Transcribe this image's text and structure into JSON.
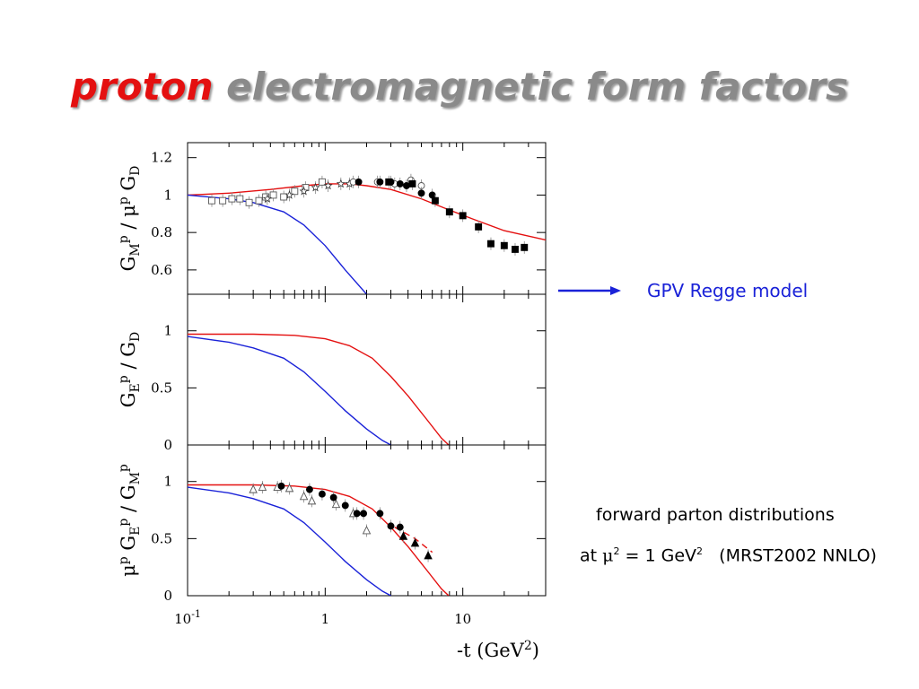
{
  "slide": {
    "title_word1": "proton",
    "title_word2": "electromagnetic form factors",
    "arrow_label": "GPV Regge model",
    "note_line1": "forward parton distributions",
    "note_line2_prefix": "at",
    "note_line2_mu": "μ",
    "note_line2_sup": "2",
    "note_line2_eq": "= 1 GeV",
    "note_line2_sup2": "2",
    "note_line2_ref": "(MRST2002 NNLO)"
  },
  "colors": {
    "title_accent": "#e41010",
    "title_gray": "#8a8a8a",
    "model_red": "#e41010",
    "model_blue": "#1a22d8",
    "arrow": "#1a22d8"
  },
  "chart_data": [
    {
      "type": "scatter",
      "panel": "top",
      "ylabel_parts": [
        "G",
        "M",
        "p",
        " / μ",
        "p",
        " G",
        "D"
      ],
      "xscale": "log",
      "xlim": [
        0.1,
        40
      ],
      "ylim": [
        0.47,
        1.28
      ],
      "yticks": [
        {
          "v": 0.6,
          "label": "0.6"
        },
        {
          "v": 0.8,
          "label": "0.8"
        },
        {
          "v": 1,
          "label": "1"
        },
        {
          "v": 1.2,
          "label": "1.2"
        }
      ],
      "series": [
        {
          "marker": "open-square",
          "points": [
            [
              0.15,
              0.97
            ],
            [
              0.18,
              0.97
            ],
            [
              0.21,
              0.98
            ],
            [
              0.24,
              0.98
            ],
            [
              0.28,
              0.96
            ],
            [
              0.33,
              0.97
            ],
            [
              0.37,
              0.99
            ],
            [
              0.42,
              1.0
            ],
            [
              0.5,
              0.99
            ],
            [
              0.6,
              1.02
            ],
            [
              0.72,
              1.04
            ],
            [
              0.95,
              1.07
            ]
          ]
        },
        {
          "marker": "open-star",
          "points": [
            [
              0.38,
              0.98
            ],
            [
              0.55,
              1.0
            ],
            [
              0.7,
              1.02
            ],
            [
              0.85,
              1.04
            ],
            [
              1.05,
              1.05
            ],
            [
              1.3,
              1.06
            ],
            [
              1.5,
              1.06
            ]
          ]
        },
        {
          "marker": "open-circle",
          "points": [
            [
              1.6,
              1.07
            ],
            [
              2.4,
              1.07
            ],
            [
              3.2,
              1.06
            ],
            [
              4.2,
              1.08
            ],
            [
              5.0,
              1.05
            ]
          ]
        },
        {
          "marker": "filled-circle",
          "points": [
            [
              1.75,
              1.07
            ],
            [
              2.5,
              1.07
            ],
            [
              3.0,
              1.07
            ],
            [
              3.5,
              1.06
            ],
            [
              3.9,
              1.05
            ],
            [
              5.0,
              1.01
            ],
            [
              6.0,
              1.0
            ]
          ]
        },
        {
          "marker": "filled-square",
          "points": [
            [
              2.9,
              1.07
            ],
            [
              4.3,
              1.06
            ],
            [
              6.3,
              0.97
            ],
            [
              8.0,
              0.91
            ],
            [
              10.0,
              0.89
            ],
            [
              13.0,
              0.83
            ],
            [
              16.0,
              0.74
            ],
            [
              20.0,
              0.73
            ],
            [
              24.0,
              0.71
            ],
            [
              28.0,
              0.72
            ]
          ]
        }
      ],
      "curves": [
        {
          "color": "red",
          "points": [
            [
              0.1,
              1.0
            ],
            [
              0.2,
              1.01
            ],
            [
              0.4,
              1.03
            ],
            [
              0.7,
              1.05
            ],
            [
              1.0,
              1.06
            ],
            [
              1.5,
              1.06
            ],
            [
              2.0,
              1.05
            ],
            [
              3.0,
              1.03
            ],
            [
              5.0,
              0.98
            ],
            [
              8.0,
              0.92
            ],
            [
              12.0,
              0.87
            ],
            [
              20.0,
              0.81
            ],
            [
              40.0,
              0.76
            ]
          ]
        },
        {
          "color": "blue",
          "points": [
            [
              0.1,
              1.0
            ],
            [
              0.2,
              0.98
            ],
            [
              0.3,
              0.96
            ],
            [
              0.5,
              0.91
            ],
            [
              0.7,
              0.84
            ],
            [
              1.0,
              0.73
            ],
            [
              1.4,
              0.6
            ],
            [
              2.0,
              0.47
            ]
          ]
        }
      ]
    },
    {
      "type": "line",
      "panel": "middle",
      "ylabel_parts": [
        "G",
        "E",
        "p",
        " / G",
        "D"
      ],
      "xscale": "log",
      "xlim": [
        0.1,
        40
      ],
      "ylim": [
        0,
        1.32
      ],
      "yticks": [
        {
          "v": 0,
          "label": "0"
        },
        {
          "v": 0.5,
          "label": "0.5"
        },
        {
          "v": 1,
          "label": "1"
        }
      ],
      "curves": [
        {
          "color": "red",
          "points": [
            [
              0.1,
              0.97
            ],
            [
              0.3,
              0.97
            ],
            [
              0.6,
              0.96
            ],
            [
              1.0,
              0.93
            ],
            [
              1.5,
              0.87
            ],
            [
              2.2,
              0.76
            ],
            [
              3.0,
              0.6
            ],
            [
              4.0,
              0.43
            ],
            [
              5.5,
              0.22
            ],
            [
              7.0,
              0.06
            ],
            [
              7.9,
              0.0
            ]
          ]
        },
        {
          "color": "blue",
          "points": [
            [
              0.1,
              0.95
            ],
            [
              0.2,
              0.9
            ],
            [
              0.3,
              0.85
            ],
            [
              0.5,
              0.76
            ],
            [
              0.7,
              0.64
            ],
            [
              1.0,
              0.47
            ],
            [
              1.4,
              0.3
            ],
            [
              2.0,
              0.14
            ],
            [
              2.6,
              0.04
            ],
            [
              3.0,
              0.0
            ]
          ]
        }
      ]
    },
    {
      "type": "scatter",
      "panel": "bottom",
      "ylabel_parts": [
        "μ",
        "p",
        " G",
        "E",
        "p",
        " / G",
        "M",
        "p"
      ],
      "xscale": "log",
      "xlim": [
        0.1,
        40
      ],
      "ylim": [
        0,
        1.32
      ],
      "yticks": [
        {
          "v": 0,
          "label": "0"
        },
        {
          "v": 0.5,
          "label": "0.5"
        },
        {
          "v": 1,
          "label": "1"
        }
      ],
      "xticks": [
        {
          "v": 0.1,
          "label": "10",
          "sup": "-1"
        },
        {
          "v": 1,
          "label": "1"
        },
        {
          "v": 10,
          "label": "10"
        }
      ],
      "xlabel_parts": [
        "-t (GeV",
        "2",
        ")"
      ],
      "series": [
        {
          "marker": "open-triangle",
          "points": [
            [
              0.3,
              0.93
            ],
            [
              0.35,
              0.95
            ],
            [
              0.45,
              0.95
            ],
            [
              0.55,
              0.94
            ],
            [
              0.7,
              0.87
            ],
            [
              0.8,
              0.83
            ],
            [
              1.2,
              0.8
            ],
            [
              1.6,
              0.72
            ],
            [
              2.0,
              0.57
            ]
          ]
        },
        {
          "marker": "filled-circle",
          "points": [
            [
              0.48,
              0.96
            ],
            [
              0.77,
              0.93
            ],
            [
              0.95,
              0.89
            ],
            [
              1.15,
              0.86
            ],
            [
              1.4,
              0.79
            ],
            [
              1.7,
              0.72
            ],
            [
              1.9,
              0.72
            ],
            [
              2.5,
              0.72
            ],
            [
              3.0,
              0.61
            ],
            [
              3.5,
              0.6
            ]
          ]
        },
        {
          "marker": "filled-triangle",
          "points": [
            [
              3.7,
              0.52
            ],
            [
              4.5,
              0.46
            ],
            [
              5.6,
              0.35
            ]
          ]
        }
      ],
      "curves": [
        {
          "color": "red",
          "points": [
            [
              0.1,
              0.97
            ],
            [
              0.3,
              0.97
            ],
            [
              0.6,
              0.96
            ],
            [
              1.0,
              0.93
            ],
            [
              1.5,
              0.87
            ],
            [
              2.2,
              0.76
            ],
            [
              3.0,
              0.6
            ],
            [
              4.0,
              0.43
            ],
            [
              5.5,
              0.22
            ],
            [
              7.0,
              0.06
            ],
            [
              7.9,
              0.0
            ]
          ]
        },
        {
          "color": "blue",
          "points": [
            [
              0.1,
              0.95
            ],
            [
              0.2,
              0.9
            ],
            [
              0.3,
              0.85
            ],
            [
              0.5,
              0.76
            ],
            [
              0.7,
              0.64
            ],
            [
              1.0,
              0.47
            ],
            [
              1.4,
              0.3
            ],
            [
              2.0,
              0.14
            ],
            [
              2.6,
              0.04
            ],
            [
              3.0,
              0.0
            ]
          ]
        },
        {
          "color": "red",
          "dashed": true,
          "points": [
            [
              3.2,
              0.6
            ],
            [
              4.5,
              0.5
            ],
            [
              6.0,
              0.38
            ]
          ]
        }
      ]
    }
  ]
}
